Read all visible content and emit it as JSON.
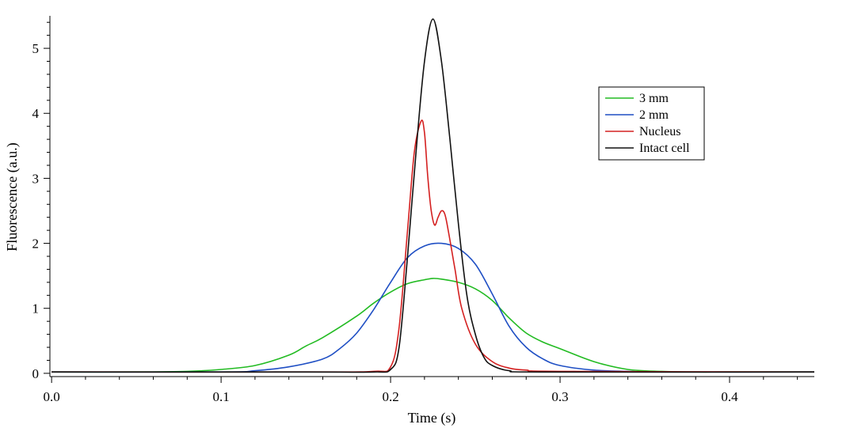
{
  "chart_data": {
    "type": "line",
    "title": "",
    "xlabel": "Time (s)",
    "ylabel": "Fluorescence (a.u.)",
    "xlim": [
      -0.001,
      0.45
    ],
    "ylim": [
      -0.05,
      5.5
    ],
    "xticks": [
      0.0,
      0.1,
      0.2,
      0.3,
      0.4
    ],
    "xtick_labels": [
      "0.0",
      "0.1",
      "0.2",
      "0.3",
      "0.4"
    ],
    "yticks": [
      0,
      1,
      2,
      3,
      4,
      5
    ],
    "ytick_labels": [
      "0",
      "1",
      "2",
      "3",
      "4",
      "5"
    ],
    "grid": false,
    "legend_position": "top-right",
    "series": [
      {
        "name": "3 mm",
        "color": "#22bb22",
        "x": [
          0.0,
          0.05,
          0.08,
          0.1,
          0.12,
          0.14,
          0.15,
          0.16,
          0.18,
          0.19,
          0.2,
          0.21,
          0.22,
          0.225,
          0.23,
          0.24,
          0.25,
          0.26,
          0.27,
          0.28,
          0.29,
          0.3,
          0.32,
          0.34,
          0.36,
          0.38,
          0.4,
          0.45
        ],
        "y": [
          0.02,
          0.02,
          0.03,
          0.06,
          0.12,
          0.28,
          0.42,
          0.55,
          0.88,
          1.08,
          1.25,
          1.38,
          1.44,
          1.46,
          1.45,
          1.4,
          1.3,
          1.12,
          0.85,
          0.62,
          0.48,
          0.38,
          0.18,
          0.06,
          0.03,
          0.02,
          0.02,
          0.02
        ]
      },
      {
        "name": "2 mm",
        "color": "#1f4fc4",
        "x": [
          0.0,
          0.1,
          0.12,
          0.14,
          0.16,
          0.17,
          0.18,
          0.19,
          0.2,
          0.21,
          0.22,
          0.23,
          0.24,
          0.25,
          0.26,
          0.27,
          0.28,
          0.29,
          0.3,
          0.32,
          0.34,
          0.36,
          0.45
        ],
        "y": [
          0.02,
          0.02,
          0.04,
          0.1,
          0.22,
          0.38,
          0.62,
          0.98,
          1.4,
          1.78,
          1.96,
          2.0,
          1.92,
          1.68,
          1.22,
          0.72,
          0.4,
          0.22,
          0.12,
          0.05,
          0.03,
          0.02,
          0.02
        ]
      },
      {
        "name": "Nucleus",
        "color": "#d42020",
        "x": [
          0.0,
          0.15,
          0.19,
          0.2,
          0.205,
          0.21,
          0.214,
          0.218,
          0.22,
          0.222,
          0.224,
          0.226,
          0.228,
          0.23,
          0.232,
          0.234,
          0.238,
          0.242,
          0.25,
          0.26,
          0.27,
          0.28,
          0.3,
          0.45
        ],
        "y": [
          0.02,
          0.02,
          0.03,
          0.1,
          0.7,
          2.2,
          3.4,
          3.88,
          3.7,
          3.0,
          2.5,
          2.28,
          2.4,
          2.5,
          2.45,
          2.2,
          1.6,
          1.0,
          0.45,
          0.18,
          0.08,
          0.05,
          0.03,
          0.02
        ]
      },
      {
        "name": "Intact cell",
        "color": "#111111",
        "x": [
          0.0,
          0.15,
          0.19,
          0.2,
          0.205,
          0.21,
          0.215,
          0.22,
          0.225,
          0.23,
          0.235,
          0.24,
          0.245,
          0.25,
          0.255,
          0.26,
          0.27,
          0.29,
          0.45
        ],
        "y": [
          0.02,
          0.02,
          0.02,
          0.06,
          0.4,
          1.8,
          3.4,
          4.8,
          5.45,
          4.8,
          3.6,
          2.3,
          1.2,
          0.6,
          0.25,
          0.12,
          0.04,
          0.02,
          0.02
        ]
      }
    ]
  }
}
